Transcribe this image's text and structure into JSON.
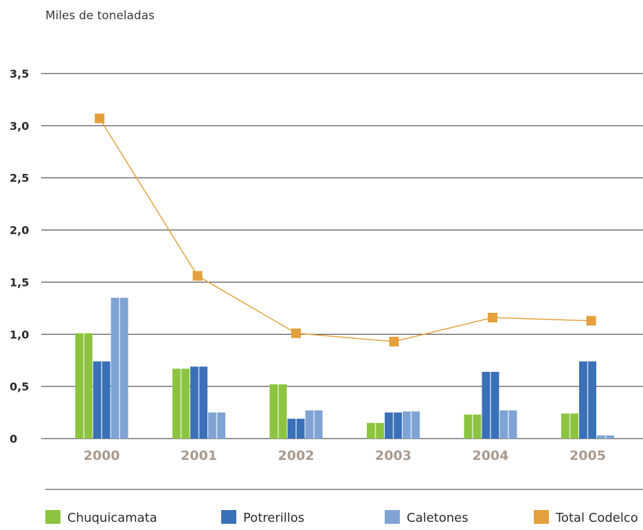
{
  "chart_data": {
    "type": "bar",
    "ylabel": "Miles de toneladas",
    "y_ticks": [
      "0",
      "0,5",
      "1,0",
      "1,5",
      "2,0",
      "2,5",
      "3,0",
      "3,5"
    ],
    "ylim": [
      0,
      3.5
    ],
    "grid": true,
    "legend_position": "bottom",
    "categories": [
      "2000",
      "2001",
      "2002",
      "2003",
      "2004",
      "2005"
    ],
    "series": [
      {
        "name": "Chuquicamata",
        "type": "bar",
        "color": "#8cc43f",
        "values": [
          1.01,
          0.67,
          0.52,
          0.15,
          0.23,
          0.24
        ]
      },
      {
        "name": "Potrerillos",
        "type": "bar",
        "color": "#3a70b8",
        "values": [
          0.74,
          0.69,
          0.19,
          0.25,
          0.64,
          0.74
        ]
      },
      {
        "name": "Caletones",
        "type": "bar",
        "color": "#7fa3d4",
        "values": [
          1.35,
          0.25,
          0.27,
          0.26,
          0.27,
          0.03
        ]
      },
      {
        "name": "Total Codelco",
        "type": "line",
        "color": "#e3a03c",
        "values": [
          3.07,
          1.56,
          1.01,
          0.93,
          1.16,
          1.13
        ]
      }
    ]
  }
}
